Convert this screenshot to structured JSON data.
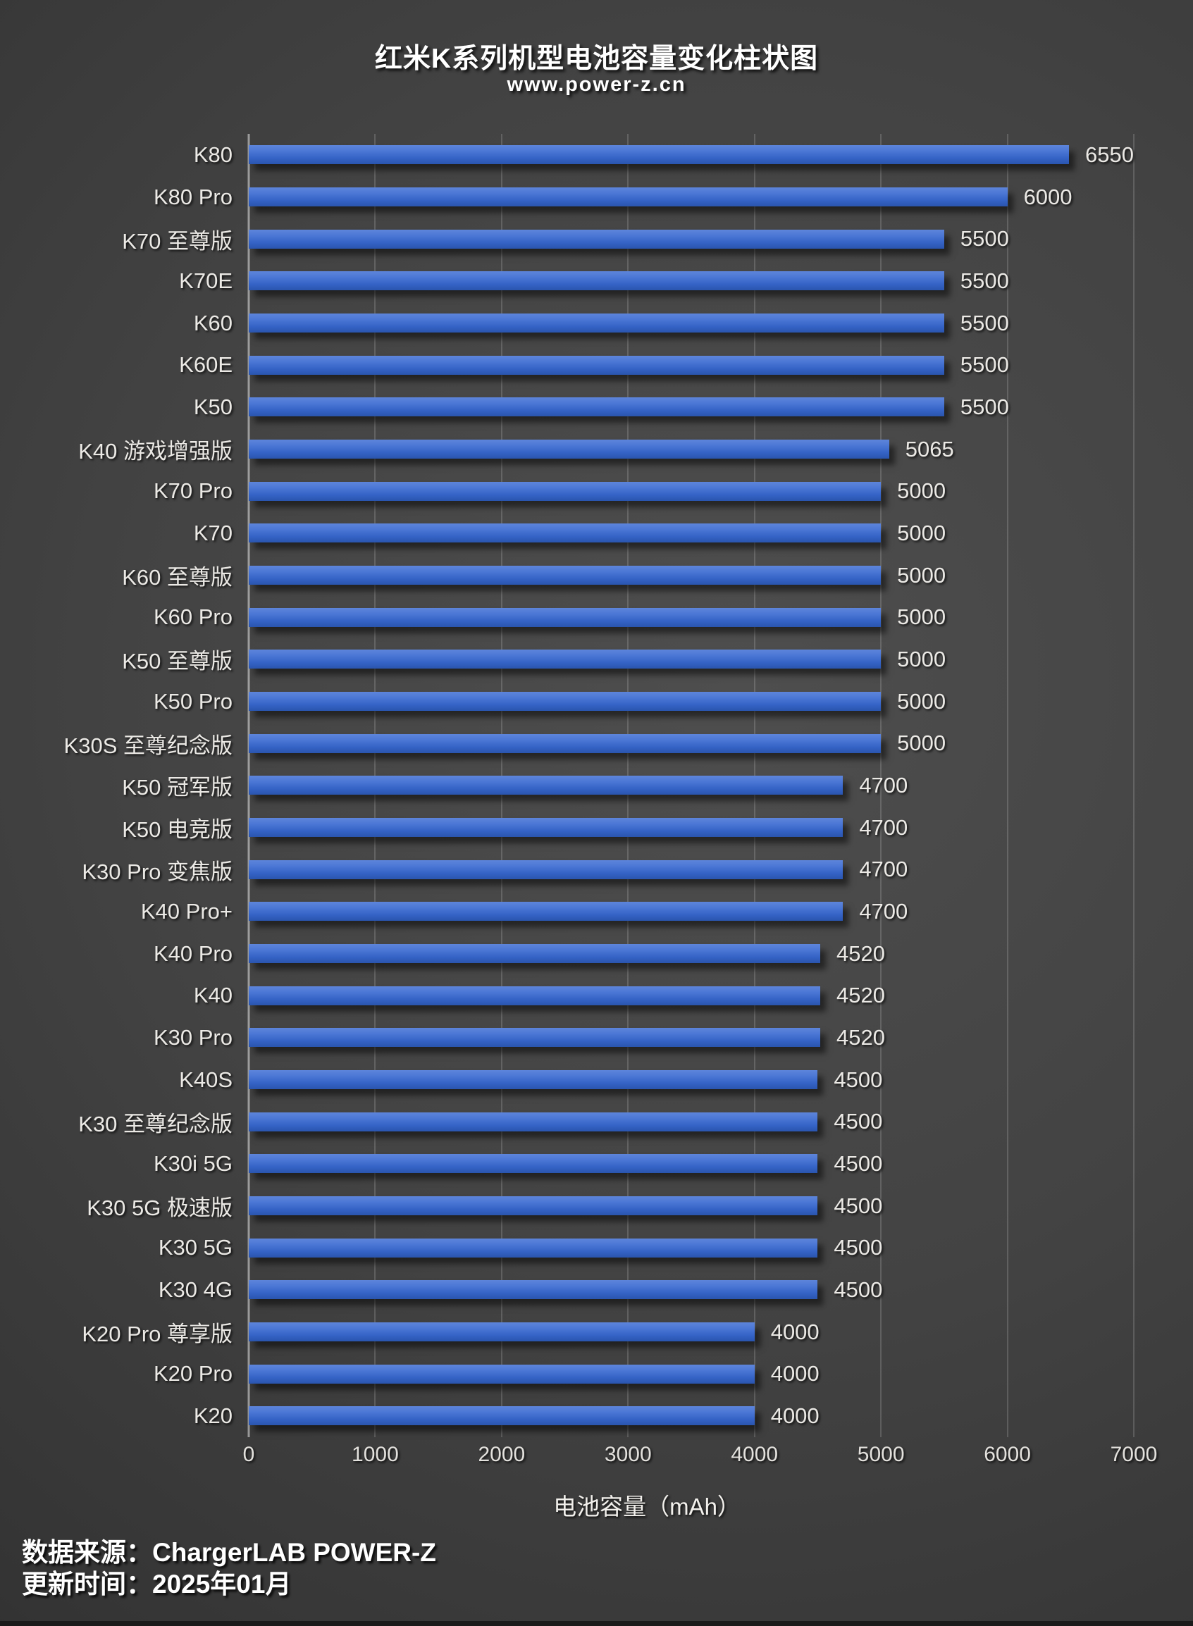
{
  "title": "红米K系列机型电池容量变化柱状图",
  "subtitle": "www.power-z.cn",
  "chart_data": {
    "type": "bar",
    "orientation": "horizontal",
    "title": "红米K系列机型电池容量变化柱状图",
    "subtitle": "www.power-z.cn",
    "categories": [
      "K80",
      "K80 Pro",
      "K70 至尊版",
      "K70E",
      "K60",
      "K60E",
      "K50",
      "K40 游戏增强版",
      "K70 Pro",
      "K70",
      "K60 至尊版",
      "K60 Pro",
      "K50 至尊版",
      "K50 Pro",
      "K30S 至尊纪念版",
      "K50 冠军版",
      "K50 电竞版",
      "K30 Pro 变焦版",
      "K40 Pro+",
      "K40 Pro",
      "K40",
      "K30 Pro",
      "K40S",
      "K30 至尊纪念版",
      "K30i 5G",
      "K30 5G 极速版",
      "K30 5G",
      "K30 4G",
      "K20 Pro 尊享版",
      "K20 Pro",
      "K20"
    ],
    "values": [
      6550,
      6000,
      5500,
      5500,
      5500,
      5500,
      5500,
      5065,
      5000,
      5000,
      5000,
      5000,
      5000,
      5000,
      5000,
      4700,
      4700,
      4700,
      4700,
      4520,
      4520,
      4520,
      4500,
      4500,
      4500,
      4500,
      4500,
      4500,
      4000,
      4000,
      4000
    ],
    "xlabel": "电池容量（mAh）",
    "ylabel": "",
    "xlim": [
      0,
      7000
    ],
    "xticks": [
      0,
      1000,
      2000,
      3000,
      4000,
      5000,
      6000,
      7000
    ],
    "grid": "vertical",
    "legend": "none",
    "value_labels": true,
    "bar_color": "#3a68cb",
    "bar_gradient_top": "#5d85db",
    "bar_gradient_bottom": "#2a55ae",
    "background_color": "#3c3c3c",
    "text_color": "#ebe9e5"
  },
  "footer": {
    "source_line": "数据来源：ChargerLAB POWER-Z",
    "updated_line": "更新时间：2025年01月"
  }
}
